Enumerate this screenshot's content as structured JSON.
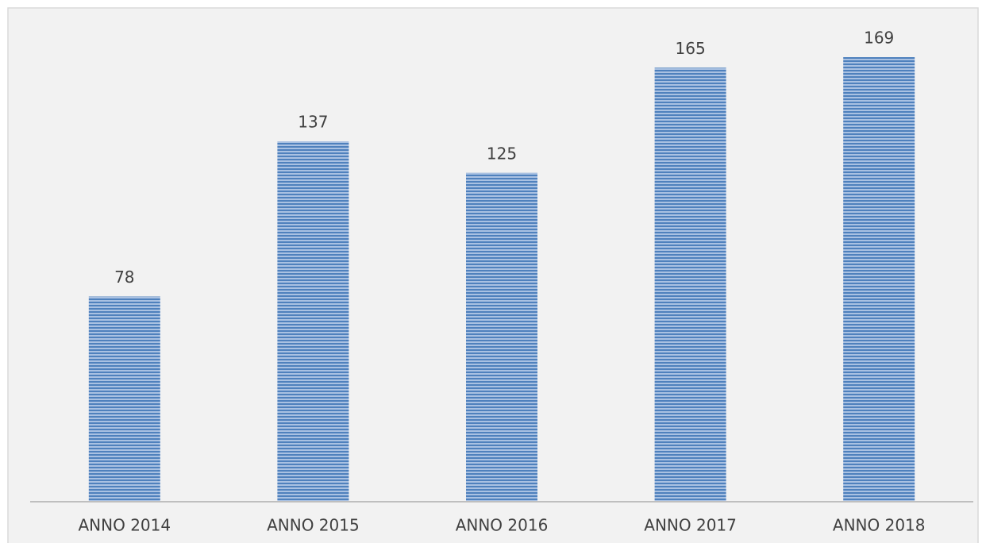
{
  "chart_data": {
    "type": "bar",
    "categories": [
      "ANNO 2014",
      "ANNO 2015",
      "ANNO 2016",
      "ANNO 2017",
      "ANNO 2018"
    ],
    "values": [
      78,
      137,
      125,
      165,
      169
    ],
    "color": "#4f81bd"
  }
}
